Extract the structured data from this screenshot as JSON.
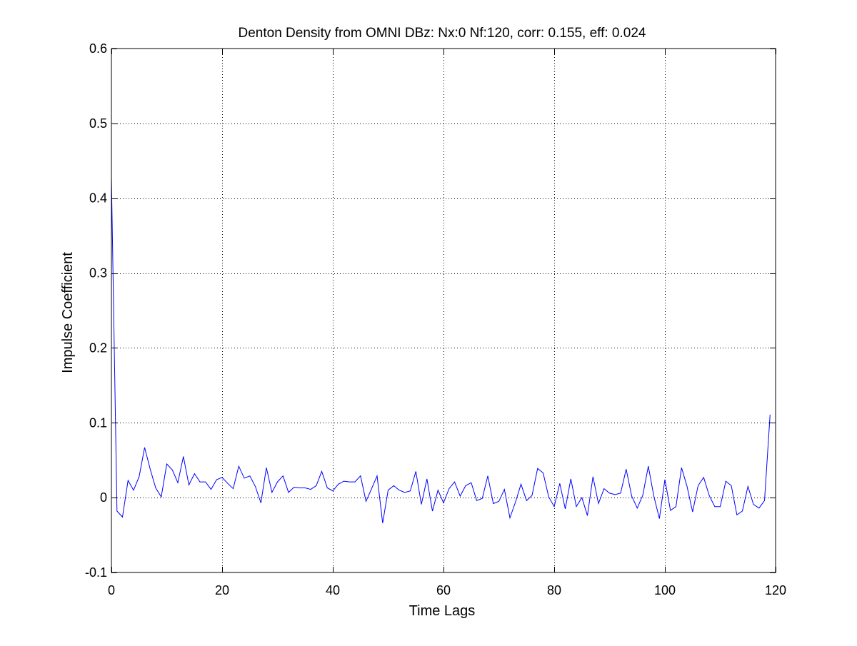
{
  "chart_data": {
    "type": "line",
    "title": "Denton Density from OMNI DBz: Nx:0 Nf:120, corr: 0.155, eff: 0.024",
    "xlabel": "Time Lags",
    "ylabel": "Impulse Coefficient",
    "xlim": [
      0,
      120
    ],
    "ylim": [
      -0.1,
      0.6
    ],
    "xticks": [
      0,
      20,
      40,
      60,
      80,
      100,
      120
    ],
    "yticks": [
      -0.1,
      0,
      0.1,
      0.2,
      0.3,
      0.4,
      0.5,
      0.6
    ],
    "xtick_labels": [
      "0",
      "20",
      "40",
      "60",
      "80",
      "100",
      "120"
    ],
    "ytick_labels": [
      "-0.1",
      "0",
      "0.1",
      "0.2",
      "0.3",
      "0.4",
      "0.5",
      "0.6"
    ],
    "grid": true,
    "line_color": "#0000ff",
    "x": [
      0,
      1,
      2,
      3,
      4,
      5,
      6,
      7,
      8,
      9,
      10,
      11,
      12,
      13,
      14,
      15,
      16,
      17,
      18,
      19,
      20,
      21,
      22,
      23,
      24,
      25,
      26,
      27,
      28,
      29,
      30,
      31,
      32,
      33,
      34,
      35,
      36,
      37,
      38,
      39,
      40,
      41,
      42,
      43,
      44,
      45,
      46,
      47,
      48,
      49,
      50,
      51,
      52,
      53,
      54,
      55,
      56,
      57,
      58,
      59,
      60,
      61,
      62,
      63,
      64,
      65,
      66,
      67,
      68,
      69,
      70,
      71,
      72,
      73,
      74,
      75,
      76,
      77,
      78,
      79,
      80,
      81,
      82,
      83,
      84,
      85,
      86,
      87,
      88,
      89,
      90,
      91,
      92,
      93,
      94,
      95,
      96,
      97,
      98,
      99,
      100,
      101,
      102,
      103,
      104,
      105,
      106,
      107,
      108,
      109,
      110,
      111,
      112,
      113,
      114,
      115,
      116,
      117,
      118,
      119
    ],
    "y": [
      0.428,
      -0.018,
      -0.026,
      0.023,
      0.01,
      0.028,
      0.067,
      0.038,
      0.013,
      0.001,
      0.045,
      0.037,
      0.02,
      0.055,
      0.017,
      0.032,
      0.021,
      0.021,
      0.011,
      0.024,
      0.027,
      0.019,
      0.012,
      0.042,
      0.026,
      0.029,
      0.015,
      -0.007,
      0.04,
      0.007,
      0.021,
      0.029,
      0.007,
      0.014,
      0.013,
      0.013,
      0.011,
      0.016,
      0.035,
      0.013,
      0.009,
      0.018,
      0.022,
      0.021,
      0.021,
      0.029,
      -0.005,
      0.012,
      0.029,
      -0.034,
      0.01,
      0.016,
      0.01,
      0.007,
      0.009,
      0.035,
      -0.009,
      0.025,
      -0.018,
      0.01,
      -0.007,
      0.012,
      0.021,
      0.002,
      0.016,
      0.02,
      -0.004,
      -0.001,
      0.029,
      -0.008,
      -0.005,
      0.011,
      -0.027,
      -0.006,
      0.018,
      -0.004,
      0.003,
      0.039,
      0.033,
      0.001,
      -0.012,
      0.019,
      -0.015,
      0.025,
      -0.012,
      0.0,
      -0.024,
      0.028,
      -0.008,
      0.012,
      0.006,
      0.004,
      0.006,
      0.038,
      0.002,
      -0.014,
      0.003,
      0.042,
      0.002,
      -0.028,
      0.024,
      -0.017,
      -0.012,
      0.04,
      0.015,
      -0.019,
      0.016,
      0.027,
      0.003,
      -0.012,
      -0.012,
      0.022,
      0.016,
      -0.023,
      -0.018,
      0.015,
      -0.009,
      -0.014,
      -0.004,
      0.111
    ]
  }
}
